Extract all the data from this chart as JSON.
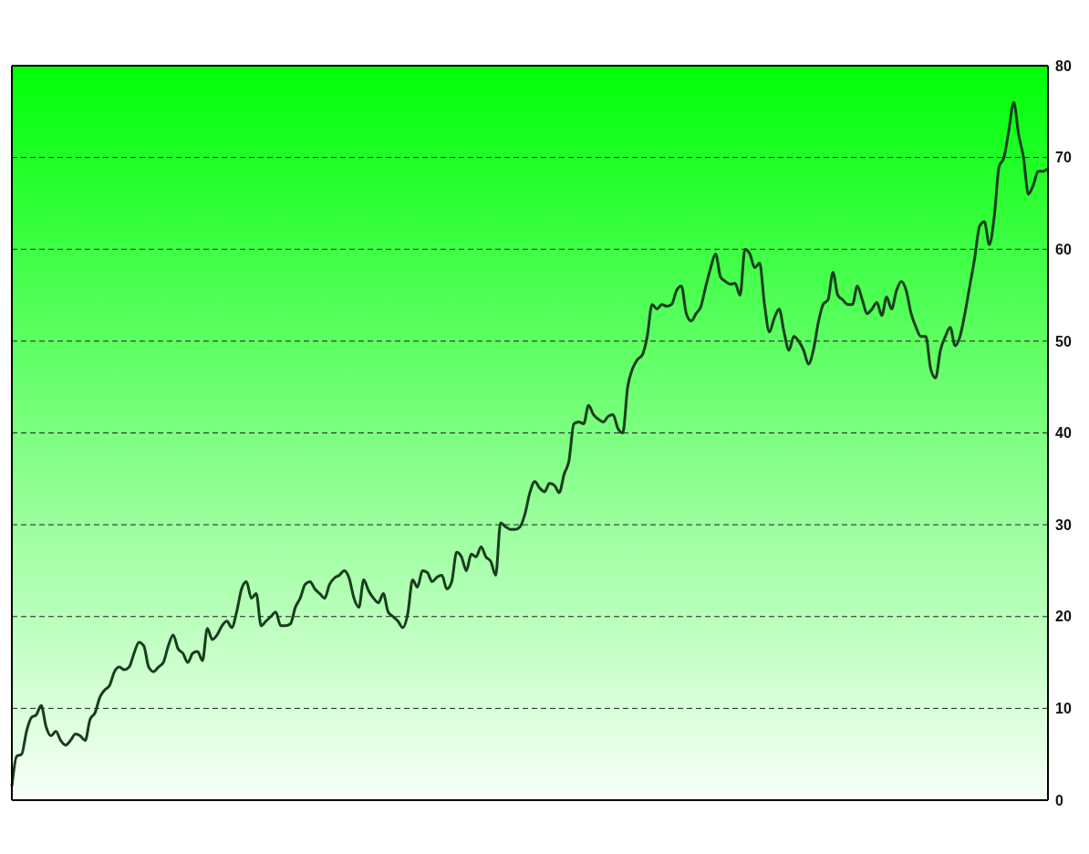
{
  "chart_data": {
    "type": "line",
    "categories": [
      null,
      null,
      null,
      null,
      null,
      null,
      null,
      null,
      null,
      null,
      null,
      null,
      null,
      null,
      null,
      null,
      null,
      null,
      null,
      null,
      null,
      null,
      null,
      null,
      null,
      null,
      null,
      null,
      null,
      null,
      null,
      null,
      null,
      null,
      null,
      null,
      null,
      null,
      null,
      null,
      null,
      null,
      null,
      null,
      null,
      null,
      null,
      null,
      null,
      null,
      null,
      null,
      null,
      null,
      null,
      null,
      null,
      null,
      null,
      null,
      null,
      null,
      null,
      null,
      null,
      null,
      null,
      null,
      null,
      null,
      null,
      null,
      null,
      null,
      null,
      null,
      null,
      null,
      null,
      null,
      null,
      null,
      null,
      null,
      null,
      null,
      null,
      null,
      null,
      null,
      null,
      null,
      null,
      null,
      null,
      null,
      null,
      null,
      null,
      null,
      null,
      null,
      null,
      null,
      null,
      null,
      null,
      null,
      null,
      null,
      null,
      null,
      null,
      null,
      null,
      null,
      null,
      null,
      null,
      null,
      null,
      null,
      null,
      null,
      null,
      null,
      null,
      null,
      null,
      null,
      null,
      null,
      null,
      null,
      null,
      null,
      null,
      null,
      null,
      null,
      null,
      null,
      null,
      null,
      null,
      null,
      null,
      null,
      null,
      null,
      null,
      null,
      null,
      null,
      null,
      null,
      null,
      null,
      null,
      null,
      null,
      null,
      null,
      null,
      null,
      null,
      null,
      null,
      null,
      null,
      null,
      null,
      null,
      null,
      null,
      null,
      null,
      null,
      null,
      null,
      null,
      null,
      null,
      null,
      null,
      null,
      null,
      null,
      null,
      null,
      null,
      null,
      null,
      null,
      null,
      null,
      null,
      null,
      null,
      null,
      null,
      null,
      null,
      null,
      null,
      null,
      null,
      null,
      null,
      null,
      null,
      null,
      null
    ],
    "series": [
      {
        "color": "#173d1c",
        "values": [
          1.5,
          4.8,
          5,
          7.5,
          9,
          9.3,
          10.3,
          8,
          7,
          7.5,
          6.5,
          6,
          6.5,
          7.2,
          7,
          6.5,
          8.8,
          9.5,
          11.2,
          12,
          12.5,
          14,
          14.5,
          14.2,
          14.5,
          16,
          17.2,
          16.8,
          14.5,
          14,
          14.5,
          15,
          16.8,
          18,
          16.5,
          16,
          15,
          16,
          16.2,
          15.2,
          18.7,
          17.5,
          18,
          19,
          19.5,
          18.8,
          20.5,
          23,
          23.8,
          22,
          22.5,
          19,
          19.5,
          20,
          20.5,
          19,
          19,
          19.2,
          21,
          22,
          23.5,
          23.8,
          23,
          22.5,
          22,
          23.5,
          24.2,
          24.5,
          25,
          24.2,
          22,
          21,
          24,
          22.8,
          22,
          21.5,
          22.5,
          20.5,
          20,
          19.5,
          18.8,
          20.3,
          24,
          23.2,
          25,
          24.8,
          23.8,
          24.3,
          24.5,
          23,
          23.8,
          27,
          26.5,
          25,
          26.8,
          26.5,
          27.6,
          26.5,
          26,
          24.5,
          30.2,
          29.8,
          29.5,
          29.5,
          29.8,
          31.2,
          33.5,
          34.7,
          34,
          33.6,
          34.5,
          34.3,
          33.5,
          35.5,
          37,
          41,
          41.2,
          41,
          43,
          42,
          41.5,
          41.2,
          41.8,
          42,
          40.5,
          40,
          45,
          47,
          48,
          48.5,
          50.5,
          54,
          53.5,
          54,
          53.8,
          54,
          55.5,
          56,
          53,
          52.2,
          53,
          53.8,
          56,
          58,
          59.5,
          57,
          56.5,
          56.2,
          56.3,
          55,
          60,
          59.5,
          58,
          58.5,
          54,
          51,
          52.5,
          53.5,
          51,
          49,
          50.5,
          50,
          49,
          47.5,
          49,
          52,
          54,
          54.5,
          57.5,
          55,
          54.5,
          54,
          54,
          56,
          54.5,
          53,
          53.5,
          54.2,
          52.8,
          54.8,
          53.5,
          55.5,
          56.5,
          55.5,
          53,
          51.5,
          50.5,
          50.5,
          47,
          46,
          49,
          50.5,
          51.5,
          49.5,
          50.5,
          53,
          56,
          59,
          62.5,
          63,
          60.5,
          63.5,
          69,
          70,
          73,
          76,
          72.5,
          70,
          66,
          67,
          68.5,
          68.5,
          68.8
        ]
      }
    ],
    "ylim": [
      0,
      80
    ],
    "yticks": [
      0,
      10,
      20,
      30,
      40,
      50,
      60,
      70,
      80
    ],
    "grid": "y",
    "tick_labels": "y",
    "line_style": "solid",
    "marker": "none"
  }
}
